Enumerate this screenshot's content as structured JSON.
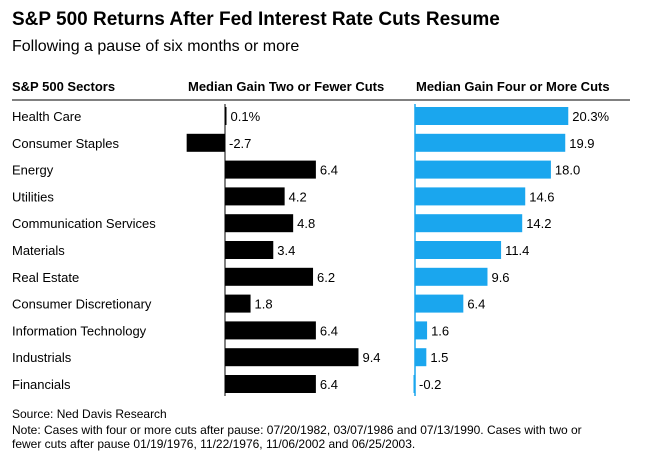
{
  "title": "S&P 500 Returns After Fed Interest Rate Cuts Resume",
  "subtitle": "Following a pause of six months or more",
  "chart_data": {
    "type": "bar",
    "columns": {
      "category_header": "S&P 500 Sectors",
      "left_header": "Median Gain Two or Fewer Cuts",
      "right_header": "Median Gain Four or More Cuts"
    },
    "categories": [
      "Health Care",
      "Consumer Staples",
      "Energy",
      "Utilities",
      "Communication Services",
      "Materials",
      "Real Estate",
      "Consumer Discretionary",
      "Information Technology",
      "Industrials",
      "Financials"
    ],
    "series": [
      {
        "name": "Median Gain Two or Fewer Cuts",
        "color": "#000000",
        "values": [
          0.1,
          -2.7,
          6.4,
          4.2,
          4.8,
          3.4,
          6.2,
          1.8,
          6.4,
          9.4,
          6.4
        ],
        "labels": [
          "0.1%",
          "-2.7",
          "6.4",
          "4.2",
          "4.8",
          "3.4",
          "6.2",
          "1.8",
          "6.4",
          "9.4",
          "6.4"
        ]
      },
      {
        "name": "Median Gain Four or More Cuts",
        "color": "#1aa6ee",
        "values": [
          20.3,
          19.9,
          18.0,
          14.6,
          14.2,
          11.4,
          9.6,
          6.4,
          1.6,
          1.5,
          -0.2
        ],
        "labels": [
          "20.3%",
          "19.9",
          "18.0",
          "14.6",
          "14.2",
          "11.4",
          "9.6",
          "6.4",
          "1.6",
          "1.5",
          "-0.2"
        ]
      }
    ],
    "grid": false,
    "legend": "none"
  },
  "source": "Source: Ned Davis Research",
  "note_line1": "Note: Cases with four or more cuts after pause: 07/20/1982, 03/07/1986 and 07/13/1990. Cases with two or",
  "note_line2": "fewer cuts after pause 01/19/1976, 11/22/1976, 11/06/2002 and 06/25/2003."
}
